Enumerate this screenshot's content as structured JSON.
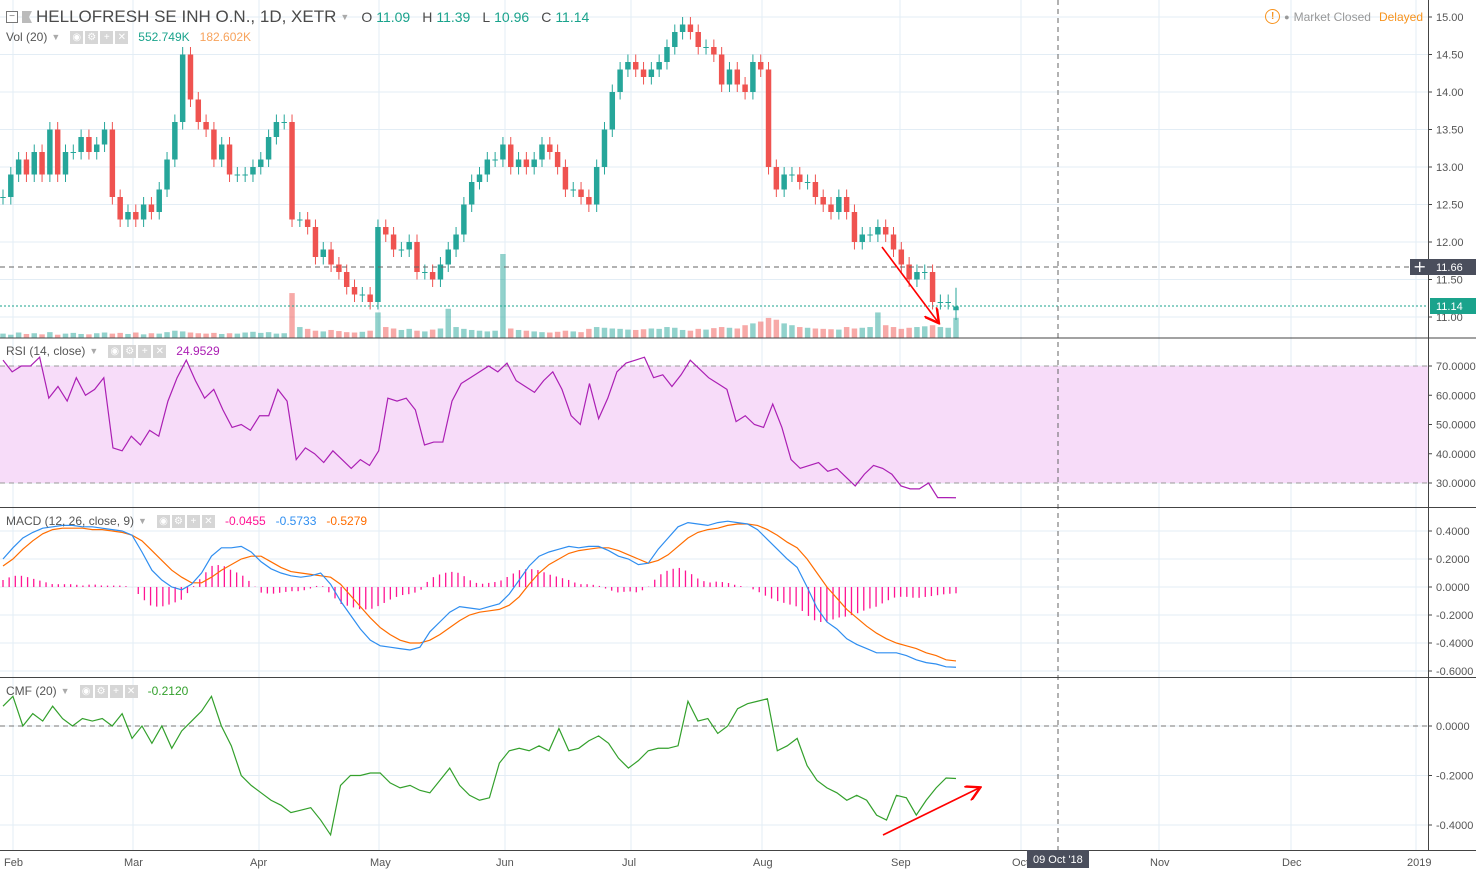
{
  "header": {
    "symbol_title": "HELLOFRESH SE INH O.N., 1D, XETR",
    "ohlc": {
      "o_label": "O",
      "o": "11.09",
      "h_label": "H",
      "h": "11.39",
      "l_label": "L",
      "l": "10.96",
      "c_label": "C",
      "c": "11.14"
    },
    "market_status": "Market Closed",
    "delayed": "Delayed"
  },
  "legend": {
    "vol": {
      "label": "Vol (20)",
      "value": "552.749K",
      "ma": "182.602K"
    },
    "rsi": {
      "label": "RSI (14, close)",
      "value": "24.9529"
    },
    "macd": {
      "label": "MACD (12, 26, close, 9)",
      "hist": "-0.0455",
      "macd": "-0.5733",
      "signal": "-0.5279"
    },
    "cmf": {
      "label": "CMF (20)",
      "value": "-0.2120"
    }
  },
  "price_tags": {
    "crosshair": "11.66",
    "last": "11.14"
  },
  "crosshair_date": "09 Oct '18",
  "icons": [
    "collapse-icon",
    "flag-icon",
    "eye-icon",
    "gear-icon",
    "plus-icon",
    "close-icon",
    "warning-icon",
    "crosshair-plus-icon"
  ],
  "colors": {
    "up": "#26a69a",
    "down": "#ef5350",
    "rsi": "#ab1fb4",
    "rsi_band": "#f7dcf9",
    "macd": "#2f8ef0",
    "signal": "#ff6d00",
    "hist": "#ff1493",
    "cmf": "#33a02c",
    "arrow": "#ff0000"
  },
  "chart_data": [
    {
      "type": "candlestick",
      "title": "HELLOFRESH SE INH O.N., 1D, XETR",
      "x_range": [
        "2018-01-30",
        "2018-09-14"
      ],
      "x_ticks": [
        "Feb",
        "Mar",
        "Apr",
        "May",
        "Jun",
        "Jul",
        "Aug",
        "Sep",
        "Oct",
        "Nov",
        "Dec",
        "2019"
      ],
      "y_ticks": [
        "15.00",
        "14.50",
        "14.00",
        "13.50",
        "13.00",
        "12.50",
        "12.00",
        "11.50",
        "11.00"
      ],
      "ylim": [
        10.73,
        15.23
      ],
      "last_bar": {
        "open": 11.09,
        "high": 11.39,
        "low": 10.96,
        "close": 11.14
      },
      "horizontal_line": 11.66,
      "vertical_line_date": "2018-10-09",
      "close": [
        12.6,
        12.9,
        13.1,
        12.9,
        13.2,
        12.9,
        13.5,
        12.9,
        13.2,
        13.2,
        13.4,
        13.2,
        13.3,
        13.5,
        12.6,
        12.3,
        12.4,
        12.3,
        12.5,
        12.4,
        12.7,
        13.1,
        13.6,
        14.5,
        13.9,
        13.6,
        13.5,
        13.1,
        13.3,
        12.9,
        12.9,
        12.9,
        13.0,
        13.1,
        13.4,
        13.6,
        13.6,
        12.3,
        12.3,
        12.2,
        11.8,
        11.9,
        11.7,
        11.6,
        11.4,
        11.3,
        11.3,
        11.2,
        12.2,
        12.1,
        11.9,
        11.9,
        12.0,
        11.6,
        11.6,
        11.5,
        11.7,
        11.9,
        12.1,
        12.5,
        12.8,
        12.9,
        13.1,
        13.1,
        13.3,
        13.0,
        13.1,
        13.0,
        13.1,
        13.3,
        13.2,
        13.0,
        12.7,
        12.7,
        12.6,
        12.5,
        13.0,
        13.5,
        14.0,
        14.3,
        14.4,
        14.3,
        14.2,
        14.3,
        14.4,
        14.6,
        14.8,
        14.9,
        14.8,
        14.6,
        14.6,
        14.5,
        14.1,
        14.3,
        14.1,
        14.0,
        14.4,
        14.3,
        13.0,
        12.7,
        12.9,
        12.9,
        12.8,
        12.8,
        12.6,
        12.5,
        12.4,
        12.6,
        12.4,
        12.0,
        12.1,
        12.1,
        12.2,
        12.1,
        11.9,
        11.7,
        11.5,
        11.6,
        11.6,
        11.2,
        11.2,
        11.2,
        11.14
      ],
      "volume_k": [
        120,
        90,
        150,
        110,
        130,
        100,
        160,
        90,
        120,
        140,
        110,
        100,
        130,
        150,
        120,
        140,
        110,
        150,
        100,
        130,
        120,
        160,
        200,
        180,
        150,
        130,
        120,
        140,
        110,
        130,
        120,
        150,
        170,
        140,
        160,
        120,
        130,
        1230,
        300,
        250,
        200,
        180,
        220,
        190,
        160,
        150,
        170,
        200,
        700,
        300,
        260,
        220,
        250,
        200,
        180,
        230,
        260,
        800,
        300,
        250,
        220,
        200,
        180,
        200,
        2300,
        260,
        220,
        200,
        180,
        160,
        150,
        170,
        200,
        180,
        160,
        250,
        300,
        280,
        260,
        250,
        230,
        220,
        240,
        260,
        250,
        300,
        280,
        220,
        200,
        250,
        230,
        270,
        300,
        280,
        260,
        350,
        400,
        450,
        550,
        500,
        400,
        350,
        300,
        280,
        260,
        250,
        240,
        230,
        300,
        260,
        280,
        300,
        700,
        350,
        300,
        250,
        280,
        300,
        320,
        350,
        300,
        280,
        552.749
      ]
    },
    {
      "type": "line",
      "name": "RSI (14, close)",
      "y_ticks": [
        "70.0000",
        "60.0000",
        "50.0000",
        "40.0000",
        "30.0000"
      ],
      "band": [
        30,
        70
      ],
      "values": [
        72,
        68,
        70,
        70,
        73,
        59,
        63,
        58,
        66,
        60,
        62,
        66,
        42,
        41,
        46,
        43,
        48,
        46,
        58,
        66,
        72,
        65,
        59,
        62,
        55,
        49,
        50,
        48,
        53,
        53,
        62,
        58,
        38,
        42,
        40,
        37,
        41,
        38,
        35,
        38,
        36,
        41,
        59,
        58,
        59,
        55,
        43,
        44,
        44,
        58,
        64,
        66,
        68,
        70,
        68,
        71,
        65,
        63,
        61,
        65,
        68,
        62,
        53,
        50,
        64,
        52,
        59,
        68,
        71,
        72,
        73,
        66,
        67,
        63,
        67,
        72,
        69,
        66,
        64,
        62,
        51,
        53,
        50,
        49,
        57,
        49,
        38,
        35,
        36,
        37,
        34,
        35,
        32,
        29,
        33,
        36,
        35,
        33,
        29,
        28,
        28,
        30,
        25,
        25,
        24.95
      ]
    },
    {
      "type": "line",
      "name": "MACD (12, 26, close, 9)",
      "y_ticks": [
        "0.4000",
        "0.2000",
        "0.0000",
        "-0.2000",
        "-0.4000",
        "-0.6000"
      ],
      "macd": [
        0.2,
        0.28,
        0.35,
        0.39,
        0.42,
        0.43,
        0.44,
        0.44,
        0.43,
        0.43,
        0.42,
        0.41,
        0.4,
        0.37,
        0.25,
        0.12,
        0.05,
        0.0,
        -0.02,
        0.02,
        0.1,
        0.22,
        0.28,
        0.28,
        0.29,
        0.25,
        0.18,
        0.13,
        0.1,
        0.08,
        0.07,
        0.08,
        0.1,
        0.02,
        -0.1,
        -0.2,
        -0.3,
        -0.38,
        -0.42,
        -0.43,
        -0.44,
        -0.45,
        -0.43,
        -0.32,
        -0.25,
        -0.18,
        -0.14,
        -0.15,
        -0.16,
        -0.14,
        -0.12,
        -0.05,
        0.05,
        0.15,
        0.22,
        0.25,
        0.27,
        0.29,
        0.28,
        0.29,
        0.29,
        0.26,
        0.22,
        0.2,
        0.16,
        0.17,
        0.27,
        0.35,
        0.43,
        0.46,
        0.45,
        0.44,
        0.46,
        0.47,
        0.46,
        0.45,
        0.41,
        0.34,
        0.27,
        0.2,
        0.14,
        0.0,
        -0.15,
        -0.25,
        -0.3,
        -0.37,
        -0.41,
        -0.44,
        -0.47,
        -0.47,
        -0.47,
        -0.49,
        -0.52,
        -0.54,
        -0.55,
        -0.57,
        -0.573
      ],
      "signal": [
        0.15,
        0.2,
        0.27,
        0.33,
        0.38,
        0.41,
        0.42,
        0.42,
        0.42,
        0.41,
        0.41,
        0.4,
        0.39,
        0.37,
        0.33,
        0.26,
        0.19,
        0.12,
        0.07,
        0.03,
        0.03,
        0.07,
        0.12,
        0.16,
        0.2,
        0.22,
        0.22,
        0.18,
        0.14,
        0.11,
        0.1,
        0.09,
        0.08,
        0.07,
        0.02,
        -0.06,
        -0.14,
        -0.22,
        -0.29,
        -0.34,
        -0.38,
        -0.4,
        -0.4,
        -0.38,
        -0.34,
        -0.29,
        -0.24,
        -0.2,
        -0.18,
        -0.17,
        -0.16,
        -0.13,
        -0.07,
        0.02,
        0.1,
        0.16,
        0.2,
        0.24,
        0.26,
        0.27,
        0.28,
        0.28,
        0.26,
        0.23,
        0.2,
        0.17,
        0.19,
        0.23,
        0.29,
        0.35,
        0.39,
        0.41,
        0.42,
        0.44,
        0.45,
        0.45,
        0.44,
        0.41,
        0.37,
        0.32,
        0.28,
        0.2,
        0.1,
        0.0,
        -0.08,
        -0.16,
        -0.22,
        -0.28,
        -0.33,
        -0.37,
        -0.4,
        -0.42,
        -0.44,
        -0.47,
        -0.49,
        -0.52,
        -0.528
      ]
    },
    {
      "type": "line",
      "name": "CMF (20)",
      "y_ticks": [
        "0.0000",
        "-0.2000",
        "-0.4000"
      ],
      "values": [
        0.08,
        0.12,
        0.0,
        0.05,
        0.02,
        0.08,
        0.03,
        0.0,
        0.03,
        0.02,
        0.03,
        0.0,
        0.05,
        -0.05,
        0.0,
        -0.07,
        0.0,
        -0.09,
        -0.02,
        0.02,
        0.06,
        0.12,
        0.0,
        -0.08,
        -0.2,
        -0.24,
        -0.27,
        -0.3,
        -0.32,
        -0.35,
        -0.34,
        -0.33,
        -0.38,
        -0.44,
        -0.24,
        -0.2,
        -0.2,
        -0.19,
        -0.19,
        -0.23,
        -0.25,
        -0.24,
        -0.26,
        -0.27,
        -0.22,
        -0.17,
        -0.24,
        -0.28,
        -0.3,
        -0.29,
        -0.15,
        -0.1,
        -0.09,
        -0.1,
        -0.08,
        -0.1,
        -0.01,
        -0.1,
        -0.09,
        -0.06,
        -0.04,
        -0.07,
        -0.13,
        -0.17,
        -0.14,
        -0.1,
        -0.09,
        -0.09,
        -0.08,
        0.1,
        0.02,
        0.03,
        -0.03,
        0.0,
        0.07,
        0.09,
        0.1,
        0.11,
        -0.1,
        -0.08,
        -0.05,
        -0.16,
        -0.22,
        -0.25,
        -0.27,
        -0.3,
        -0.28,
        -0.3,
        -0.36,
        -0.38,
        -0.28,
        -0.29,
        -0.36,
        -0.3,
        -0.25,
        -0.21,
        -0.212
      ]
    }
  ]
}
